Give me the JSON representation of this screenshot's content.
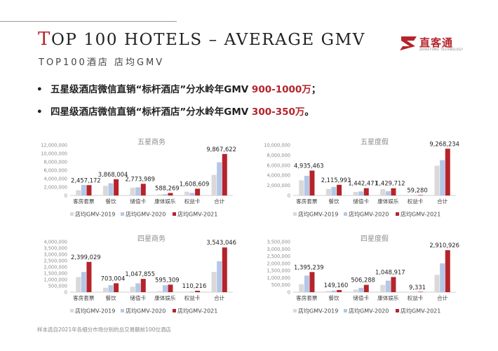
{
  "header": {
    "title_first": "T",
    "title_rest": "OP 100 HOTELS – AVERAGE GMV",
    "subtitle": "TOP100酒店 店均GMV"
  },
  "logo": {
    "name": "直客通",
    "sub": "ZHIKETONG TECHNOLOGY",
    "color": "#b5242b"
  },
  "bullets": [
    {
      "marker": "•",
      "text": "五星级酒店微信直销“标杆酒店”分水岭年GMV ",
      "highlight": "900-1000万",
      "suffix": "；"
    },
    {
      "marker": "•",
      "text": "四星级酒店微信直销“标杆酒店”分水岭年GMV ",
      "highlight": "300-350万",
      "suffix": "。"
    }
  ],
  "footnote": "样本选自2021年各细分市场分别的总交易额前100位酒店",
  "colors": {
    "GMV-2019": "#d9d9d9",
    "GMV-2020": "#b4c7e7",
    "GMV-2021": "#b5242b"
  },
  "chart_data": [
    {
      "type": "bar",
      "title": "五星商务",
      "categories": [
        "客房套票",
        "餐饮",
        "储值卡",
        "康体娱乐",
        "权益卡",
        "合计"
      ],
      "series": [
        {
          "name": "店均GMV-2019",
          "values": [
            1250000,
            2300000,
            1850000,
            230000,
            900000,
            4900000
          ]
        },
        {
          "name": "店均GMV-2020",
          "values": [
            2500000,
            2900000,
            1950000,
            300000,
            600000,
            7900000
          ]
        },
        {
          "name": "店均GMV-2021",
          "values": [
            2457172,
            3868004,
            2773989,
            588269,
            1608609,
            9867622
          ]
        }
      ],
      "data_labels": [
        "2,457,172",
        "3,868,004",
        "2,773,989",
        "588,269",
        "1,608,609",
        "9,867,622"
      ],
      "y_ticks": [
        "0",
        "2,000,000",
        "4,000,000",
        "6,000,000",
        "8,000,000",
        "10,000,000",
        "12,000,000"
      ],
      "ylim": [
        0,
        12000000
      ],
      "legend_position": "bottom",
      "grid": false
    },
    {
      "type": "bar",
      "title": "五星度假",
      "categories": [
        "客房套票",
        "餐饮",
        "储值卡",
        "康体娱乐",
        "权益卡",
        "合计"
      ],
      "series": [
        {
          "name": "店均GMV-2019",
          "values": [
            3000000,
            1300000,
            700000,
            1250000,
            40000,
            5900000
          ]
        },
        {
          "name": "店均GMV-2020",
          "values": [
            3900000,
            1700000,
            800000,
            850000,
            60000,
            7000000
          ]
        },
        {
          "name": "店均GMV-2021",
          "values": [
            4935463,
            2115993,
            1442471,
            1429712,
            59280,
            9268234
          ]
        }
      ],
      "data_labels": [
        "4,935,463",
        "2,115,993",
        "1,442,471",
        "1,429,712",
        "59,280",
        "9,268,234"
      ],
      "y_ticks": [
        "0",
        "2,000,000",
        "4,000,000",
        "6,000,000",
        "8,000,000",
        "10,000,000"
      ],
      "ylim": [
        0,
        10000000
      ],
      "legend_position": "bottom",
      "grid": false
    },
    {
      "type": "bar",
      "title": "四星商务",
      "categories": [
        "客房套票",
        "餐饮",
        "储值卡",
        "康体娱乐",
        "权益卡",
        "合计"
      ],
      "series": [
        {
          "name": "店均GMV-2019",
          "values": [
            1200000,
            350000,
            430000,
            80000,
            30000,
            1600000
          ]
        },
        {
          "name": "店均GMV-2020",
          "values": [
            1600000,
            550000,
            700000,
            550000,
            50000,
            2450000
          ]
        },
        {
          "name": "店均GMV-2021",
          "values": [
            2399029,
            703004,
            1047855,
            595309,
            110216,
            3543046
          ]
        }
      ],
      "data_labels": [
        "2,399,029",
        "703,004",
        "1,047,855",
        "595,309",
        "110,216",
        "3,543,046"
      ],
      "y_ticks": [
        "0",
        "500,000",
        "1,000,000",
        "1,500,000",
        "2,000,000",
        "2,500,000",
        "3,000,000",
        "3,500,000",
        "4,000,000"
      ],
      "ylim": [
        0,
        4000000
      ],
      "legend_position": "bottom",
      "grid": false
    },
    {
      "type": "bar",
      "title": "四星度假",
      "categories": [
        "客房套票",
        "餐饮",
        "储值卡",
        "康体娱乐",
        "权益卡",
        "合计"
      ],
      "series": [
        {
          "name": "店均GMV-2019",
          "values": [
            550000,
            80000,
            180000,
            500000,
            8000,
            1200000
          ]
        },
        {
          "name": "店均GMV-2020",
          "values": [
            1150000,
            110000,
            300000,
            800000,
            10000,
            2000000
          ]
        },
        {
          "name": "店均GMV-2021",
          "values": [
            1395239,
            149160,
            506288,
            1048917,
            9331,
            2910926
          ]
        }
      ],
      "data_labels": [
        "1,395,239",
        "149,160",
        "506,288",
        "1,048,917",
        "9,331",
        "2,910,926"
      ],
      "y_ticks": [
        "0",
        "500,000",
        "1,000,000",
        "1,500,000",
        "2,000,000",
        "2,500,000",
        "3,000,000",
        "3,500,000"
      ],
      "ylim": [
        0,
        3500000
      ],
      "legend_position": "bottom",
      "grid": false
    }
  ]
}
